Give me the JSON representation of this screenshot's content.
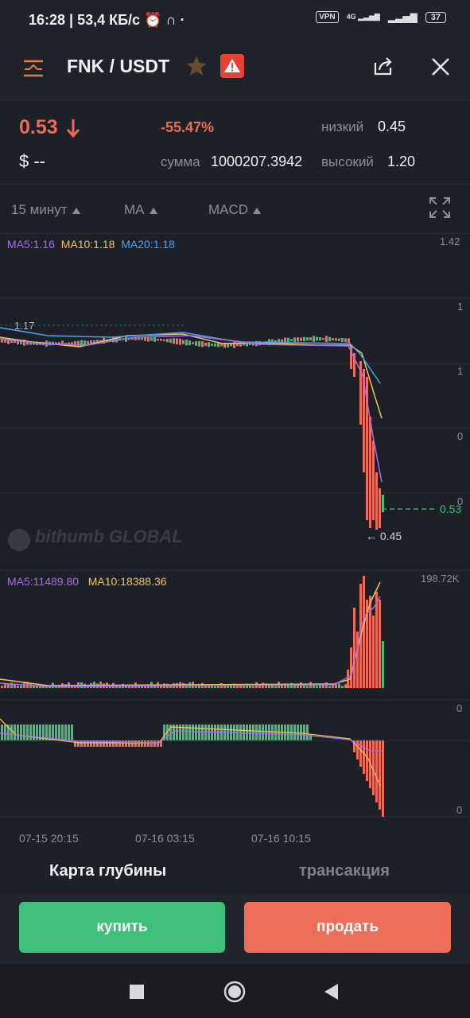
{
  "status_bar": {
    "time_speed": "16:28 | 53,4 КБ/с",
    "vpn": "VPN",
    "network": "4G",
    "battery": "37"
  },
  "header": {
    "pair": "FNK / USDT",
    "icons": [
      "menu-icon",
      "star-icon",
      "warning-icon",
      "share-icon",
      "close-icon"
    ]
  },
  "stats": {
    "price": "0.53",
    "usd_value": "$ --",
    "change": "-55.47%",
    "low_label": "низкий",
    "low_value": "0.45",
    "amount_label": "сумма",
    "amount_value": "1000207.3942",
    "high_label": "высокий",
    "high_value": "1.20"
  },
  "toolbar": {
    "interval": "15 минут",
    "indicator": "MA",
    "sub_indicator": "MACD"
  },
  "chart": {
    "ma5": "MA5:1.16",
    "ma10": "MA10:1.18",
    "ma20": "MA20:1.18",
    "price_axis": [
      "1.42",
      "1",
      "1",
      "0",
      "0"
    ],
    "high_marker": "1.17",
    "low_marker": "← 0.45",
    "current_price": "0.53",
    "watermark": "bithumb GLOBAL",
    "vol_ma5": "MA5:11489.80",
    "vol_ma10": "MA10:18388.36",
    "vol_max": "198.72K",
    "macd_axis_top": "0",
    "macd_axis_bottom": "0",
    "dates": [
      "07-15 20:15",
      "07-16 03:15",
      "07-16 10:15"
    ],
    "colors": {
      "up": "#3fbf7a",
      "down": "#ec6e58",
      "ma5": "#a66cf0",
      "ma10": "#f5c15a",
      "ma20": "#43a6f0"
    }
  },
  "tabs": {
    "depth": "Карта глубины",
    "trades": "трансакция"
  },
  "actions": {
    "buy": "купить",
    "sell": "продать"
  }
}
